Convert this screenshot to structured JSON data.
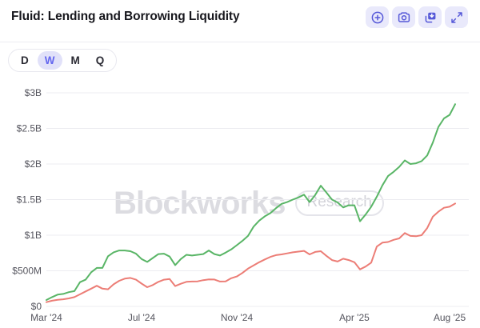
{
  "header": {
    "title": "Fluid: Lending and Borrowing Liquidity",
    "toolbar_icons": [
      "plus-circle-icon",
      "camera-icon",
      "save-image-icon",
      "expand-icon"
    ]
  },
  "controls": {
    "options": [
      {
        "label": "D",
        "selected": false
      },
      {
        "label": "W",
        "selected": true
      },
      {
        "label": "M",
        "selected": false
      },
      {
        "label": "Q",
        "selected": false
      }
    ]
  },
  "watermark": {
    "brand": "Blockworks",
    "badge": "Research"
  },
  "colors": {
    "accent": "#6467ef",
    "button_bg": "#e9e9fb",
    "icon": "#5659d8",
    "grid": "#ececf0",
    "axis_text": "#55555e",
    "green_series": "#59b566",
    "red_series": "#ec7d76"
  },
  "chart_data": {
    "type": "line",
    "title": "Fluid: Lending and Borrowing Liquidity",
    "interval": "weekly",
    "unit": "USD millions",
    "ylim": [
      0,
      3000
    ],
    "grid": "horizontal",
    "legend": "none",
    "y_ticks": [
      {
        "label": "$3B",
        "value": 3000
      },
      {
        "label": "$2.5B",
        "value": 2500
      },
      {
        "label": "$2B",
        "value": 2000
      },
      {
        "label": "$1.5B",
        "value": 1500
      },
      {
        "label": "$1B",
        "value": 1000
      },
      {
        "label": "$500M",
        "value": 500
      },
      {
        "label": "$0",
        "value": 0
      }
    ],
    "x_ticks": [
      {
        "label": "Mar '24",
        "week": 0
      },
      {
        "label": "Jul '24",
        "week": 17
      },
      {
        "label": "Nov '24",
        "week": 34
      },
      {
        "label": "Apr '25",
        "week": 55
      },
      {
        "label": "Aug '25",
        "week": 72
      }
    ],
    "series": [
      {
        "name": "green-series",
        "color": "#59b566",
        "values": [
          90,
          130,
          165,
          175,
          200,
          215,
          340,
          375,
          480,
          540,
          540,
          705,
          760,
          785,
          785,
          775,
          740,
          665,
          625,
          680,
          735,
          740,
          700,
          580,
          665,
          725,
          715,
          725,
          735,
          785,
          735,
          715,
          755,
          800,
          860,
          920,
          990,
          1120,
          1205,
          1265,
          1310,
          1380,
          1440,
          1465,
          1500,
          1530,
          1570,
          1465,
          1565,
          1695,
          1600,
          1500,
          1460,
          1390,
          1420,
          1420,
          1195,
          1290,
          1400,
          1540,
          1700,
          1830,
          1890,
          1960,
          2050,
          2000,
          2010,
          2040,
          2120,
          2300,
          2520,
          2640,
          2690,
          2840
        ]
      },
      {
        "name": "red-series",
        "color": "#ec7d76",
        "values": [
          60,
          80,
          92,
          100,
          112,
          130,
          170,
          210,
          250,
          290,
          250,
          240,
          310,
          360,
          390,
          400,
          375,
          320,
          270,
          300,
          345,
          375,
          385,
          285,
          318,
          345,
          350,
          352,
          368,
          380,
          378,
          350,
          352,
          395,
          420,
          470,
          530,
          575,
          620,
          660,
          695,
          720,
          730,
          745,
          760,
          770,
          780,
          730,
          765,
          775,
          710,
          650,
          630,
          670,
          650,
          620,
          520,
          560,
          615,
          840,
          895,
          905,
          935,
          955,
          1030,
          990,
          985,
          1000,
          1100,
          1260,
          1330,
          1385,
          1400,
          1445
        ]
      }
    ]
  }
}
